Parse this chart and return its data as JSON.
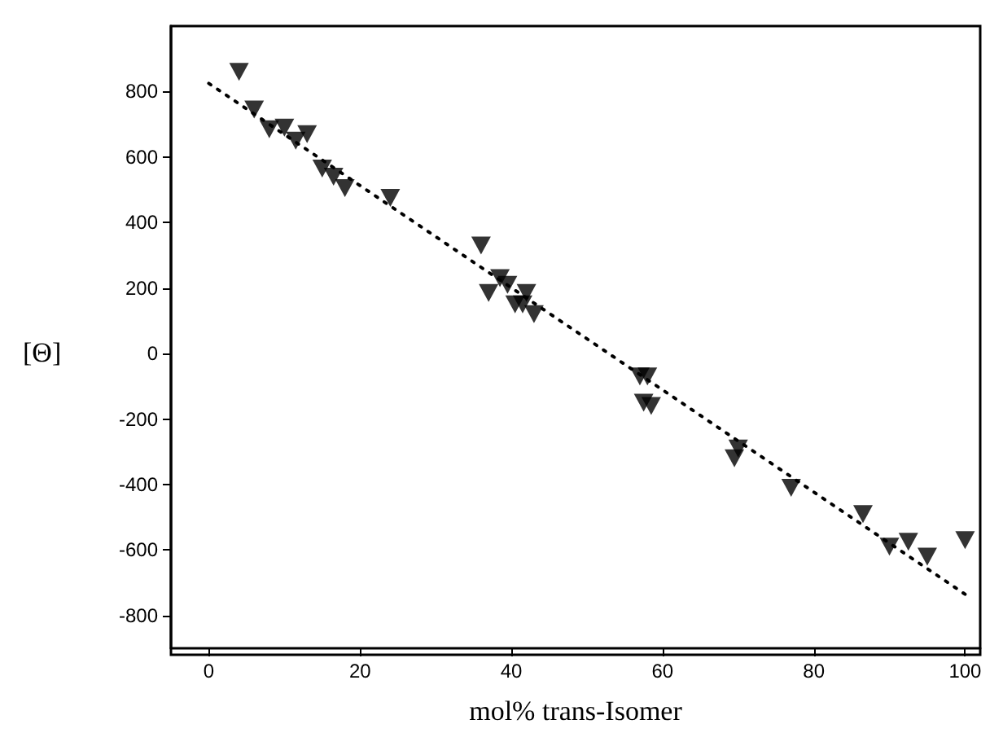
{
  "chart_data": {
    "type": "scatter",
    "xlabel": "mol% trans-Isomer",
    "ylabel": "[Θ]",
    "xlim": [
      -5,
      102
    ],
    "xticks": [
      0,
      20,
      40,
      60,
      80,
      100
    ],
    "ylim": [
      -900,
      1000
    ],
    "yticks": [
      -800,
      -600,
      -400,
      -200,
      0,
      200,
      400,
      600,
      800
    ],
    "grid": false,
    "marker": "triangle",
    "series": [
      {
        "color": "#000000",
        "x": [
          4,
          6,
          8,
          10,
          11.5,
          13,
          15,
          16.5,
          18,
          24,
          36,
          37,
          38.5,
          39.5,
          40.5,
          41.5,
          42,
          43,
          57,
          58,
          57.5,
          58.5,
          70,
          69.5,
          77,
          86.5,
          90,
          92.5,
          95,
          100
        ],
        "values": [
          860,
          745,
          685,
          690,
          650,
          670,
          565,
          540,
          505,
          475,
          330,
          185,
          230,
          210,
          150,
          150,
          185,
          120,
          -70,
          -70,
          -150,
          -160,
          -290,
          -320,
          -410,
          -490,
          -590,
          -575,
          -620,
          -570
        ]
      },
      {
        "type": "line",
        "color": "#000000",
        "line_style": "dotted",
        "marker": "none",
        "x": [
          0,
          100
        ],
        "values": [
          825,
          -735
        ]
      }
    ]
  }
}
